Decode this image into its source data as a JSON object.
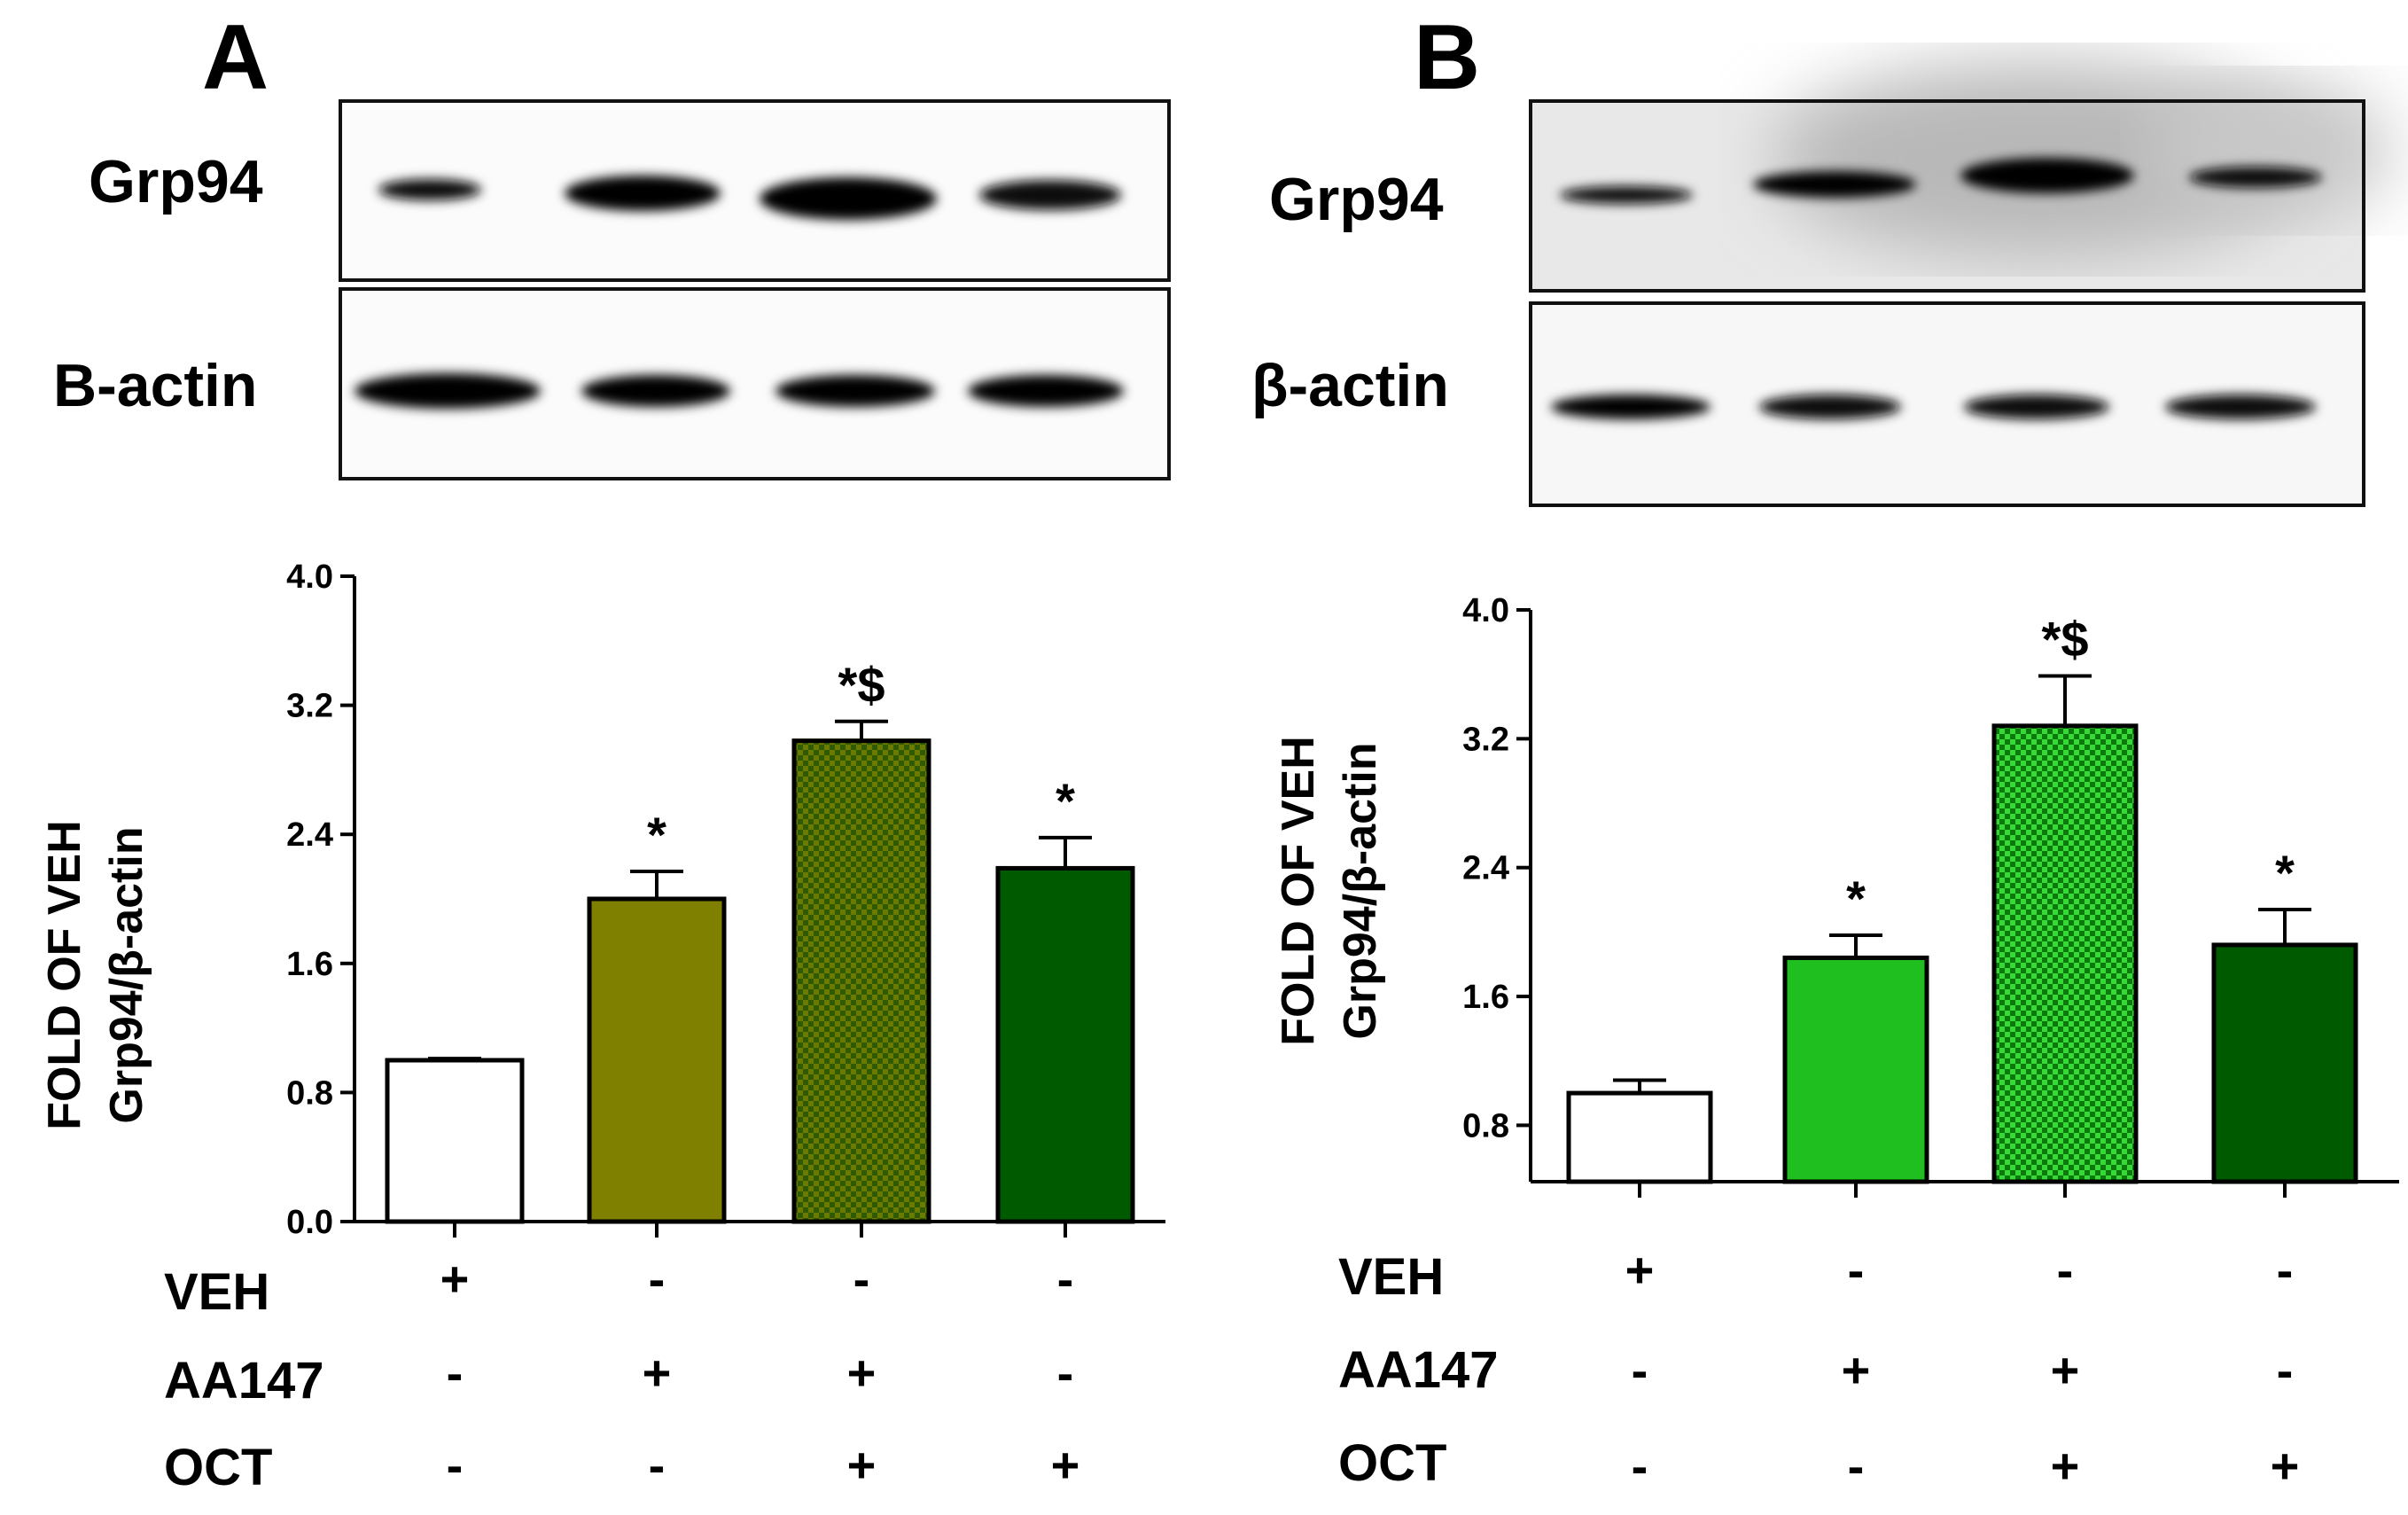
{
  "chart_data": [
    {
      "panel": "A",
      "type": "bar",
      "blot_labels": [
        "Grp94",
        "B-actin"
      ],
      "ylabel_lines": [
        "FOLD OF VEH",
        "Grp94/β-actin"
      ],
      "ylim": [
        0,
        4.0
      ],
      "yticks": [
        "0.0",
        "0.8",
        "1.6",
        "2.4",
        "3.2",
        "4.0"
      ],
      "values": [
        1.0,
        2.0,
        2.98,
        2.19
      ],
      "errors": [
        0.01,
        0.17,
        0.12,
        0.19
      ],
      "significance": [
        "",
        "*",
        "*$",
        "*"
      ],
      "bar_colors": [
        "#ffffff",
        "#808000",
        "#6b7a00",
        "#005a00"
      ],
      "bar_patterns": [
        "solid",
        "solid",
        "checker",
        "solid"
      ],
      "conditions": [
        {
          "name": "VEH",
          "signs": [
            "+",
            "-",
            "-",
            "-"
          ]
        },
        {
          "name": "AA147",
          "signs": [
            "-",
            "+",
            "+",
            "-"
          ]
        },
        {
          "name": "OCT",
          "signs": [
            "-",
            "-",
            "+",
            "+"
          ]
        }
      ]
    },
    {
      "panel": "B",
      "type": "bar",
      "blot_labels": [
        "Grp94",
        "β-actin"
      ],
      "ylabel_lines": [
        "FOLD OF VEH",
        "Grp94/β-actin"
      ],
      "ylim": [
        0.45,
        4.0
      ],
      "yticks": [
        "0.8",
        "1.6",
        "2.4",
        "3.2",
        "4.0"
      ],
      "values": [
        1.0,
        1.84,
        3.28,
        1.92
      ],
      "errors": [
        0.08,
        0.14,
        0.31,
        0.22
      ],
      "significance": [
        "",
        "*",
        "*$",
        "*"
      ],
      "bar_colors": [
        "#ffffff",
        "#1fbf1f",
        "#1fbf1f",
        "#005a00"
      ],
      "bar_patterns": [
        "solid",
        "solid",
        "checker",
        "solid"
      ],
      "conditions": [
        {
          "name": "VEH",
          "signs": [
            "+",
            "-",
            "-",
            "-"
          ]
        },
        {
          "name": "AA147",
          "signs": [
            "-",
            "+",
            "+",
            "-"
          ]
        },
        {
          "name": "OCT",
          "signs": [
            "-",
            "-",
            "+",
            "+"
          ]
        }
      ]
    }
  ]
}
